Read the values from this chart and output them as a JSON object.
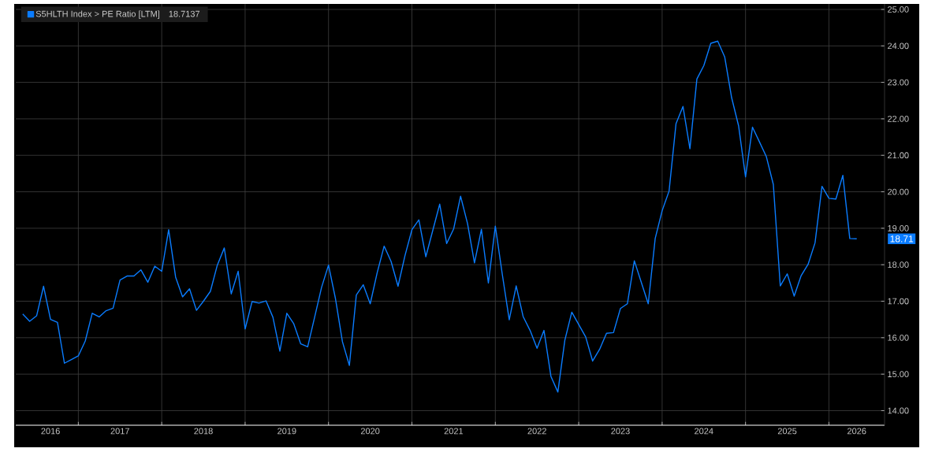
{
  "chart_data": {
    "type": "line",
    "x": [
      "2016-05",
      "2016-06",
      "2016-07",
      "2016-08",
      "2016-09",
      "2016-10",
      "2016-11",
      "2016-12",
      "2017-01",
      "2017-02",
      "2017-03",
      "2017-04",
      "2017-05",
      "2017-06",
      "2017-07",
      "2017-08",
      "2017-09",
      "2017-10",
      "2017-11",
      "2017-12",
      "2018-01",
      "2018-02",
      "2018-03",
      "2018-04",
      "2018-05",
      "2018-06",
      "2018-07",
      "2018-08",
      "2018-09",
      "2018-10",
      "2018-11",
      "2018-12",
      "2019-01",
      "2019-02",
      "2019-03",
      "2019-04",
      "2019-05",
      "2019-06",
      "2019-07",
      "2019-08",
      "2019-09",
      "2019-10",
      "2019-11",
      "2019-12",
      "2020-01",
      "2020-02",
      "2020-03",
      "2020-04",
      "2020-05",
      "2020-06",
      "2020-07",
      "2020-08",
      "2020-09",
      "2020-10",
      "2020-11",
      "2020-12",
      "2021-01",
      "2021-02",
      "2021-03",
      "2021-04",
      "2021-05",
      "2021-06",
      "2021-07",
      "2021-08",
      "2021-09",
      "2021-10",
      "2021-11",
      "2021-12",
      "2022-01",
      "2022-02",
      "2022-03",
      "2022-04",
      "2022-05",
      "2022-06",
      "2022-07",
      "2022-08",
      "2022-09",
      "2022-10",
      "2022-11",
      "2022-12",
      "2023-01",
      "2023-02",
      "2023-03",
      "2023-04",
      "2023-05",
      "2023-06",
      "2023-07",
      "2023-08",
      "2023-09",
      "2023-10",
      "2023-11",
      "2023-12",
      "2024-01",
      "2024-02",
      "2024-03",
      "2024-04",
      "2024-05",
      "2024-06",
      "2024-07",
      "2024-08",
      "2024-09",
      "2024-10",
      "2024-11",
      "2024-12",
      "2025-01",
      "2025-02",
      "2025-03",
      "2025-04",
      "2025-05",
      "2025-06",
      "2025-07",
      "2025-08",
      "2025-09",
      "2025-10",
      "2025-11",
      "2025-12",
      "2026-01",
      "2026-02",
      "2026-03",
      "2026-04",
      "2026-05"
    ],
    "series": [
      {
        "name": "S5HLTH Index > PE Ratio [LTM]",
        "color": "#0a7cff",
        "values": [
          16.65,
          16.45,
          16.6,
          17.41,
          16.5,
          16.42,
          15.3,
          15.4,
          15.5,
          15.91,
          16.67,
          16.57,
          16.74,
          16.81,
          17.58,
          17.69,
          17.69,
          17.86,
          17.52,
          17.96,
          17.82,
          18.96,
          17.66,
          17.12,
          17.34,
          16.75,
          17.0,
          17.27,
          17.99,
          18.46,
          17.2,
          17.82,
          16.24,
          16.99,
          16.95,
          17.01,
          16.56,
          15.63,
          16.67,
          16.38,
          15.83,
          15.75,
          16.56,
          17.38,
          17.99,
          17.07,
          15.89,
          15.24,
          17.17,
          17.45,
          16.93,
          17.78,
          18.51,
          18.09,
          17.41,
          18.25,
          18.96,
          19.23,
          18.22,
          18.94,
          19.66,
          18.58,
          18.98,
          19.88,
          19.13,
          18.05,
          18.97,
          17.5,
          19.06,
          17.74,
          16.49,
          17.42,
          16.58,
          16.2,
          15.71,
          16.2,
          14.94,
          14.51,
          15.93,
          16.7,
          16.36,
          16.02,
          15.36,
          15.68,
          16.12,
          16.14,
          16.8,
          16.93,
          18.11,
          17.52,
          16.93,
          18.72,
          19.48,
          20.02,
          21.87,
          22.34,
          21.18,
          23.09,
          23.46,
          24.07,
          24.13,
          23.7,
          22.58,
          21.81,
          20.41,
          21.77,
          21.37,
          20.96,
          20.2,
          17.42,
          17.75,
          17.14,
          17.7,
          18.01,
          18.6,
          20.15,
          19.82,
          19.8,
          20.45,
          18.72,
          18.71
        ]
      }
    ],
    "xlim": [
      "2016-04",
      "2026-09"
    ],
    "xticks": [
      {
        "value": "2016-09",
        "label": "2016"
      },
      {
        "value": "2017-01",
        "label": null
      },
      {
        "value": "2017-07",
        "label": "2017"
      },
      {
        "value": "2018-01",
        "label": null
      },
      {
        "value": "2018-07",
        "label": "2018"
      },
      {
        "value": "2019-01",
        "label": null
      },
      {
        "value": "2019-07",
        "label": "2019"
      },
      {
        "value": "2020-01",
        "label": null
      },
      {
        "value": "2020-07",
        "label": "2020"
      },
      {
        "value": "2021-01",
        "label": null
      },
      {
        "value": "2021-07",
        "label": "2021"
      },
      {
        "value": "2022-01",
        "label": null
      },
      {
        "value": "2022-07",
        "label": "2022"
      },
      {
        "value": "2023-01",
        "label": null
      },
      {
        "value": "2023-07",
        "label": "2023"
      },
      {
        "value": "2024-01",
        "label": null
      },
      {
        "value": "2024-07",
        "label": "2024"
      },
      {
        "value": "2025-01",
        "label": null
      },
      {
        "value": "2025-07",
        "label": "2025"
      },
      {
        "value": "2026-01",
        "label": null
      },
      {
        "value": "2026-05",
        "label": "2026"
      }
    ],
    "ylim": [
      13.6,
      25.15
    ],
    "yticks": [
      {
        "value": 14,
        "label": "14.00"
      },
      {
        "value": 15,
        "label": "15.00"
      },
      {
        "value": 16,
        "label": "16.00"
      },
      {
        "value": 17,
        "label": "17.00"
      },
      {
        "value": 18,
        "label": "18.00"
      },
      {
        "value": 19,
        "label": "19.00"
      },
      {
        "value": 20,
        "label": "20.00"
      },
      {
        "value": 21,
        "label": "21.00"
      },
      {
        "value": 22,
        "label": "22.00"
      },
      {
        "value": 23,
        "label": "23.00"
      },
      {
        "value": 24,
        "label": "24.00"
      },
      {
        "value": 25,
        "label": "25.00"
      }
    ],
    "grid": true,
    "legend": "top left",
    "annotations": [
      "18.7137",
      "18.71"
    ]
  }
}
